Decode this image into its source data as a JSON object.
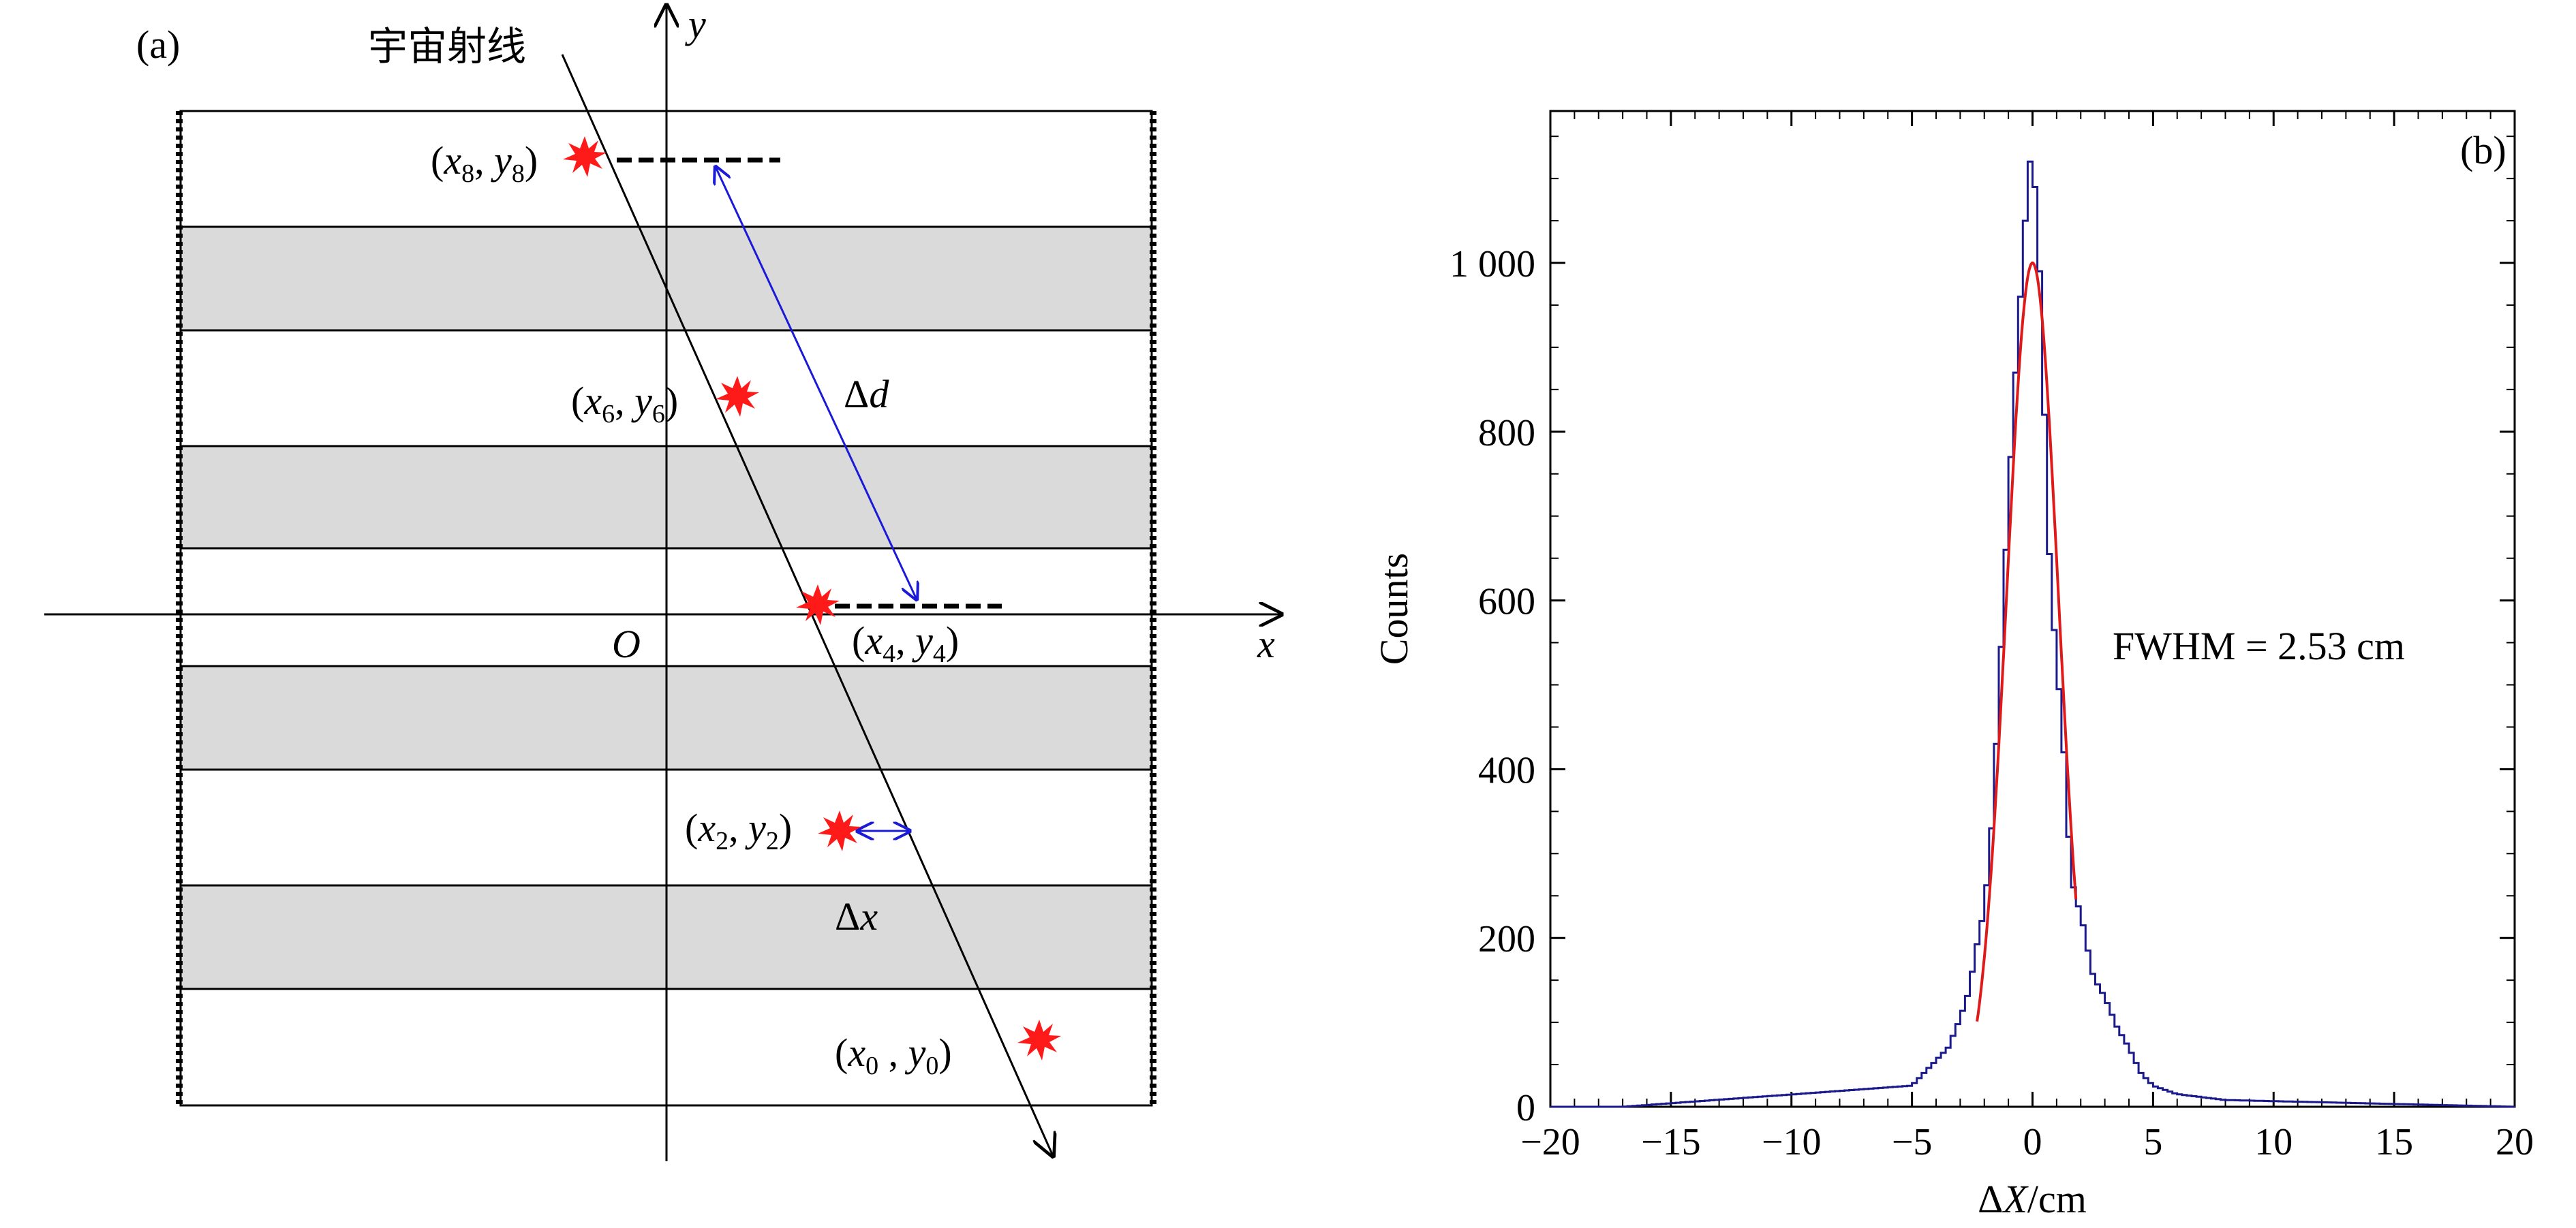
{
  "panel_a": {
    "label": "(a)",
    "cosmic_ray_label": "宇宙射线",
    "axis_x": "x",
    "axis_y": "y",
    "origin": "O",
    "points": [
      {
        "id": "p8",
        "sub": "8"
      },
      {
        "id": "p6",
        "sub": "6"
      },
      {
        "id": "p4",
        "sub": "4"
      },
      {
        "id": "p2",
        "sub": "2"
      },
      {
        "id": "p0",
        "sub": "0"
      }
    ],
    "delta_d": "Δd",
    "delta_x": "Δx"
  },
  "panel_b": {
    "label": "(b)",
    "annotation": "FWHM = 2.53 cm"
  },
  "colors": {
    "hit": "#ff1a1a",
    "histogram": "#1a1a8c",
    "fit": "#e01919",
    "arrow": "#1a1ad8",
    "band": "#dadada"
  },
  "chart_data": {
    "type": "bar",
    "title": "",
    "xlabel": "ΔX/cm",
    "ylabel": "Counts",
    "xlim": [
      -20,
      20
    ],
    "ylim": [
      0,
      1180
    ],
    "x_ticks": [
      -20,
      -15,
      -10,
      -5,
      0,
      5,
      10,
      15,
      20
    ],
    "x_tick_labels": [
      "−20",
      "−15",
      "−10",
      "−5",
      "0",
      "5",
      "10",
      "15",
      "20"
    ],
    "y_ticks": [
      0,
      200,
      400,
      600,
      800,
      1000
    ],
    "y_tick_labels": [
      "0",
      "200",
      "400",
      "600",
      "800",
      "1 000"
    ],
    "bin_width": 0.2,
    "histogram": {
      "x": [
        -5,
        -4.5,
        -4,
        -3.5,
        -3,
        -2.6,
        -2.4,
        -2.2,
        -2,
        -1.8,
        -1.6,
        -1.4,
        -1.2,
        -1,
        -0.8,
        -0.6,
        -0.4,
        -0.2,
        0,
        0.2,
        0.4,
        0.6,
        0.8,
        1,
        1.2,
        1.4,
        1.6,
        1.8,
        2,
        2.2,
        2.4,
        2.6,
        3,
        3.5,
        4,
        4.5,
        5,
        6,
        8
      ],
      "y": [
        25,
        40,
        55,
        70,
        105,
        140,
        180,
        205,
        235,
        290,
        370,
        490,
        600,
        720,
        820,
        920,
        1000,
        1100,
        1140,
        1040,
        940,
        700,
        610,
        520,
        470,
        370,
        270,
        250,
        225,
        205,
        165,
        150,
        130,
        95,
        70,
        40,
        25,
        15,
        8
      ]
    },
    "fit": {
      "type": "gaussian",
      "amplitude": 1000,
      "mean": 0,
      "fwhm": 2.53,
      "x_range": [
        -2.3,
        1.8
      ]
    }
  }
}
